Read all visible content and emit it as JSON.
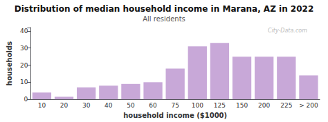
{
  "chart_data": {
    "type": "bar",
    "title": "Distribution of median household income in Marana, AZ in 2022",
    "subtitle": "All residents",
    "xlabel": "household income ($1000)",
    "ylabel": "households",
    "categories": [
      "10",
      "20",
      "30",
      "40",
      "50",
      "60",
      "75",
      "100",
      "125",
      "150",
      "200",
      "225",
      "> 200"
    ],
    "values": [
      4,
      1.5,
      7,
      8,
      9,
      10,
      18,
      31,
      33,
      25,
      25,
      25,
      14
    ],
    "color": "#c8a8d8",
    "ylim": [
      0,
      42
    ],
    "yticks": [
      0,
      10,
      20,
      30,
      40
    ],
    "grid": false,
    "annotations": [
      "City-Data.com"
    ]
  }
}
